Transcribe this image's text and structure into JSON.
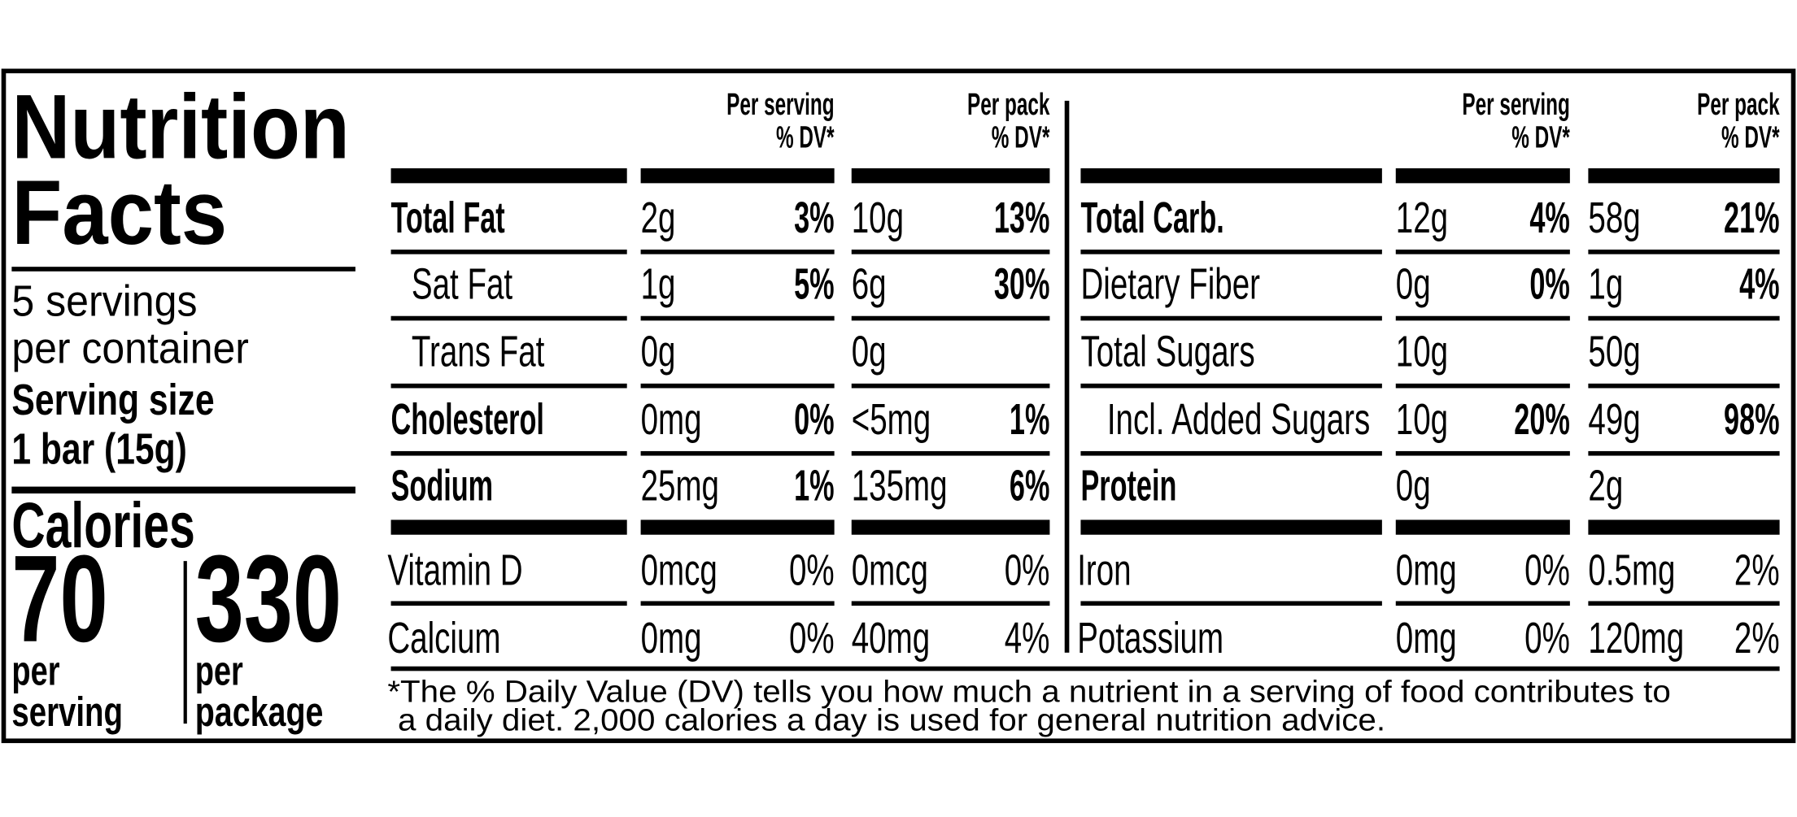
{
  "title_lines": [
    "Nutrition",
    "Facts"
  ],
  "servings_lines": [
    "5 servings",
    "per container"
  ],
  "serving_size_lines": [
    "Serving size",
    "1 bar (15g)"
  ],
  "calories": {
    "label": "Calories",
    "per_serving": {
      "amount": "70",
      "label_lines": [
        "per",
        "serving"
      ]
    },
    "per_package": {
      "amount": "330",
      "label_lines": [
        "per",
        "package"
      ]
    }
  },
  "tables": [
    {
      "columns": [
        [
          "Per serving",
          "% DV*"
        ],
        [
          "Per pack",
          "% DV*"
        ]
      ],
      "rows": [
        {
          "name": "Total Fat",
          "bold": true,
          "serving_amount": "2g",
          "serving_dv": "3%",
          "pack_amount": "10g",
          "pack_dv": "13%"
        },
        {
          "name": "Sat Fat",
          "indent": true,
          "serving_amount": "1g",
          "serving_dv": "5%",
          "pack_amount": "6g",
          "pack_dv": "30%"
        },
        {
          "name": "Trans Fat",
          "indent": true,
          "serving_amount": "0g",
          "pack_amount": "0g"
        },
        {
          "name": "Cholesterol",
          "bold": true,
          "serving_amount": "0mg",
          "serving_dv": "0%",
          "pack_amount": "<5mg",
          "pack_dv": "1%"
        },
        {
          "name": "Sodium",
          "bold": true,
          "serving_amount": "25mg",
          "serving_dv": "1%",
          "pack_amount": "135mg",
          "pack_dv": "6%"
        }
      ],
      "vitamin_rows": [
        {
          "name": "Vitamin D",
          "serving_amount": "0mcg",
          "serving_dv": "0%",
          "pack_amount": "0mcg",
          "pack_dv": "0%"
        },
        {
          "name": "Calcium",
          "serving_amount": "0mg",
          "serving_dv": "0%",
          "pack_amount": "40mg",
          "pack_dv": "4%"
        }
      ]
    },
    {
      "columns": [
        [
          "Per serving",
          "% DV*"
        ],
        [
          "Per pack",
          "% DV*"
        ]
      ],
      "rows": [
        {
          "name": "Total Carb.",
          "bold": true,
          "serving_amount": "12g",
          "serving_dv": "4%",
          "pack_amount": "58g",
          "pack_dv": "21%"
        },
        {
          "name": "Dietary Fiber",
          "serving_amount": "0g",
          "serving_dv": "0%",
          "pack_amount": "1g",
          "pack_dv": "4%"
        },
        {
          "name": "Total Sugars",
          "serving_amount": "10g",
          "pack_amount": "50g"
        },
        {
          "name": "Incl. Added Sugars",
          "indent": true,
          "serving_amount": "10g",
          "serving_dv": "20%",
          "pack_amount": "49g",
          "pack_dv": "98%"
        },
        {
          "name": "Protein",
          "bold": true,
          "serving_amount": "0g",
          "pack_amount": "2g"
        }
      ],
      "vitamin_rows": [
        {
          "name": "Iron",
          "serving_amount": "0mg",
          "serving_dv": "0%",
          "pack_amount": "0.5mg",
          "pack_dv": "2%"
        },
        {
          "name": "Potassium",
          "serving_amount": "0mg",
          "serving_dv": "0%",
          "pack_amount": "120mg",
          "pack_dv": "2%"
        }
      ]
    }
  ],
  "footnote_lines": [
    "*The % Daily Value (DV) tells you how much a nutrient in a serving of food contributes to",
    "a daily diet. 2,000 calories a day is used for general nutrition advice."
  ]
}
